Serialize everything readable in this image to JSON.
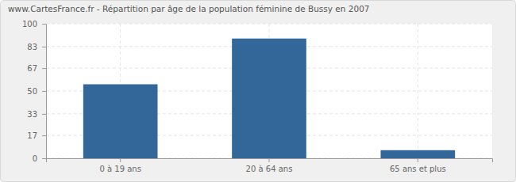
{
  "chart_data": {
    "type": "bar",
    "title": "www.CartesFrance.fr - Répartition par âge de la population féminine de Bussy en 2007",
    "categories": [
      "0 à 19 ans",
      "20 à 64 ans",
      "65 ans et plus"
    ],
    "values": [
      55,
      89,
      6
    ],
    "color": "#336699",
    "ylim": [
      0,
      100
    ],
    "yticks": [
      0,
      17,
      33,
      50,
      67,
      83,
      100
    ],
    "grid": true
  }
}
